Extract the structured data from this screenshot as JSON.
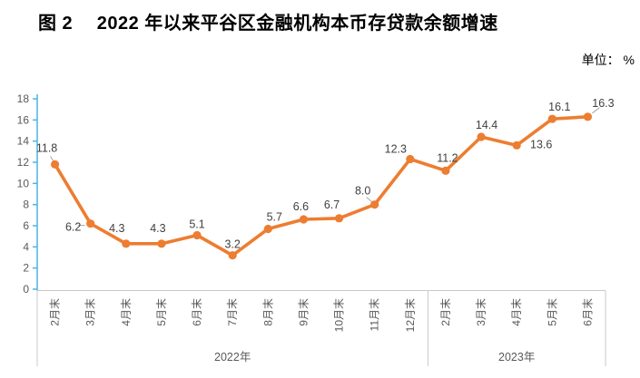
{
  "title": "图 2　 2022 年以来平谷区金融机构本币存贷款余额增速",
  "unit_label": "单位： %",
  "chart_data": {
    "type": "line",
    "title": "2022 年以来平谷区金融机构本币存贷款余额增速",
    "unit": "%",
    "categories": [
      "2月末",
      "3月末",
      "4月末",
      "5月末",
      "6月末",
      "7月末",
      "8月末",
      "9月末",
      "10月末",
      "11月末",
      "12月末",
      "2月末",
      "3月末",
      "4月末",
      "5月末",
      "6月末"
    ],
    "values": [
      11.8,
      6.2,
      4.3,
      4.3,
      5.1,
      3.2,
      5.7,
      6.6,
      6.7,
      8.0,
      12.3,
      11.2,
      14.4,
      13.6,
      16.1,
      16.3
    ],
    "groups": [
      {
        "label": "2022年",
        "start": 0,
        "end": 10
      },
      {
        "label": "2023年",
        "start": 11,
        "end": 15
      }
    ],
    "ylim": [
      0,
      18
    ],
    "ytick_step": 2,
    "grid": false,
    "data_labels": true,
    "legend": "none",
    "colors": {
      "series": "#ED7D31",
      "y_axis": "#4FB3DF",
      "x_axis": "#C9C9C9",
      "tick_label": "#595959",
      "data_label": "#404040",
      "leader_line": "#A6A6A6"
    }
  }
}
